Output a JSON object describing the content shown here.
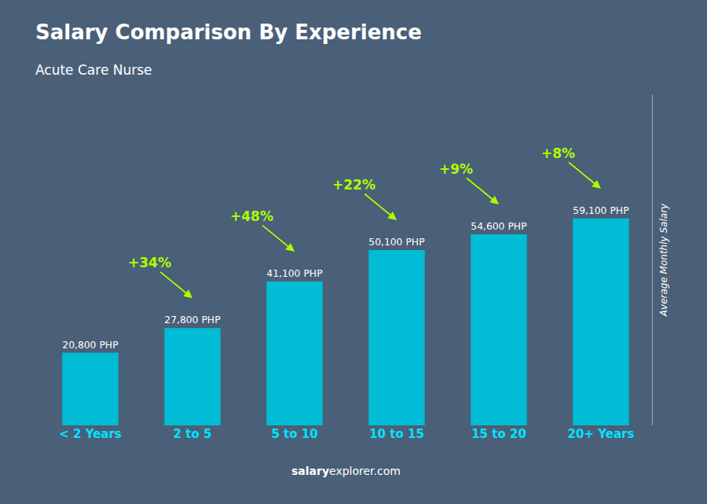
{
  "chart_data": {
    "type": "bar",
    "title": "Salary Comparison By Experience",
    "subtitle": "Acute Care Nurse",
    "ylabel": "Average Monthly Salary",
    "categories": [
      "< 2 Years",
      "2 to 5",
      "5 to 10",
      "10 to 15",
      "15 to 20",
      "20+ Years"
    ],
    "values": [
      20800,
      27800,
      41100,
      50100,
      54600,
      59100
    ],
    "value_labels": [
      "20,800 PHP",
      "27,800 PHP",
      "41,100 PHP",
      "50,100 PHP",
      "54,600 PHP",
      "59,100 PHP"
    ],
    "data_labels": true,
    "annotations": [
      "+34%",
      "+48%",
      "+22%",
      "+9%",
      "+8%"
    ],
    "watermark": [
      "salary",
      "explorer.com"
    ],
    "color": "#00bcd4",
    "ylim": [
      0,
      94560
    ],
    "tick_labels": "x",
    "grid": false
  }
}
